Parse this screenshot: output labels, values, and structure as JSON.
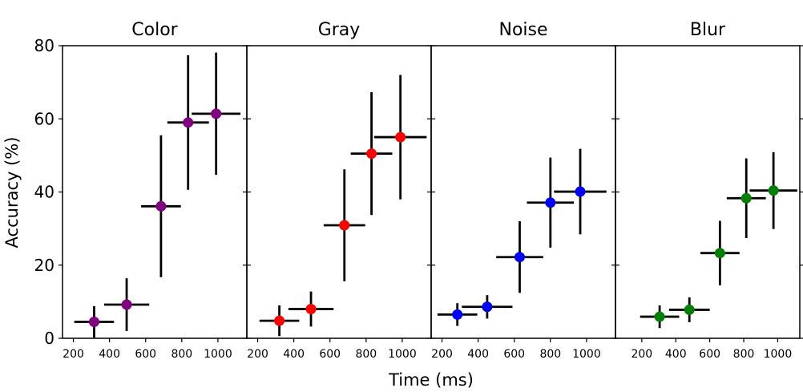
{
  "figure": {
    "xlabel": "Time (ms)",
    "ylabel": "Accuracy (%)"
  },
  "chart_data": [
    {
      "type": "scatter",
      "title": "Color",
      "color": "#800080",
      "xlim": [
        140,
        1160
      ],
      "ylim": [
        0,
        80
      ],
      "xticks": [
        200,
        400,
        600,
        800,
        1000
      ],
      "yticks": [
        0,
        20,
        40,
        60,
        80
      ],
      "points": [
        {
          "x": 315,
          "y": 4.5,
          "xerr": 110,
          "yerr": 4.3
        },
        {
          "x": 495,
          "y": 9.2,
          "xerr": 125,
          "yerr": 7.2
        },
        {
          "x": 685,
          "y": 36.1,
          "xerr": 110,
          "yerr": 19.4
        },
        {
          "x": 835,
          "y": 59.0,
          "xerr": 115,
          "yerr": 18.4
        },
        {
          "x": 990,
          "y": 61.4,
          "xerr": 135,
          "yerr": 16.7
        }
      ]
    },
    {
      "type": "scatter",
      "title": "Gray",
      "color": "#ff0000",
      "xlim": [
        140,
        1160
      ],
      "ylim": [
        0,
        80
      ],
      "xticks": [
        200,
        400,
        600,
        800,
        1000
      ],
      "yticks": [
        0,
        20,
        40,
        60,
        80
      ],
      "points": [
        {
          "x": 320,
          "y": 4.8,
          "xerr": 110,
          "yerr": 4.2
        },
        {
          "x": 495,
          "y": 8.0,
          "xerr": 125,
          "yerr": 4.8
        },
        {
          "x": 680,
          "y": 30.9,
          "xerr": 115,
          "yerr": 15.3
        },
        {
          "x": 830,
          "y": 50.5,
          "xerr": 115,
          "yerr": 16.8
        },
        {
          "x": 990,
          "y": 55.0,
          "xerr": 145,
          "yerr": 17.0
        }
      ]
    },
    {
      "type": "scatter",
      "title": "Noise",
      "color": "#0000ff",
      "xlim": [
        140,
        1160
      ],
      "ylim": [
        0,
        80
      ],
      "xticks": [
        200,
        400,
        600,
        800,
        1000
      ],
      "yticks": [
        0,
        20,
        40,
        60,
        80
      ],
      "points": [
        {
          "x": 285,
          "y": 6.5,
          "xerr": 110,
          "yerr": 3.1
        },
        {
          "x": 450,
          "y": 8.6,
          "xerr": 140,
          "yerr": 3.2
        },
        {
          "x": 630,
          "y": 22.2,
          "xerr": 130,
          "yerr": 9.8
        },
        {
          "x": 800,
          "y": 37.1,
          "xerr": 130,
          "yerr": 12.3
        },
        {
          "x": 965,
          "y": 40.1,
          "xerr": 145,
          "yerr": 11.7
        }
      ]
    },
    {
      "type": "scatter",
      "title": "Blur",
      "color": "#008000",
      "xlim": [
        45,
        1130
      ],
      "ylim": [
        0,
        80
      ],
      "xticks": [
        200,
        400,
        600,
        800,
        1000
      ],
      "yticks": [
        0,
        20,
        40,
        60,
        80
      ],
      "points": [
        {
          "x": 305,
          "y": 5.9,
          "xerr": 115,
          "yerr": 3.1
        },
        {
          "x": 480,
          "y": 7.8,
          "xerr": 120,
          "yerr": 3.4
        },
        {
          "x": 660,
          "y": 23.3,
          "xerr": 115,
          "yerr": 8.8
        },
        {
          "x": 815,
          "y": 38.3,
          "xerr": 115,
          "yerr": 10.9
        },
        {
          "x": 975,
          "y": 40.4,
          "xerr": 140,
          "yerr": 10.5
        }
      ]
    }
  ]
}
